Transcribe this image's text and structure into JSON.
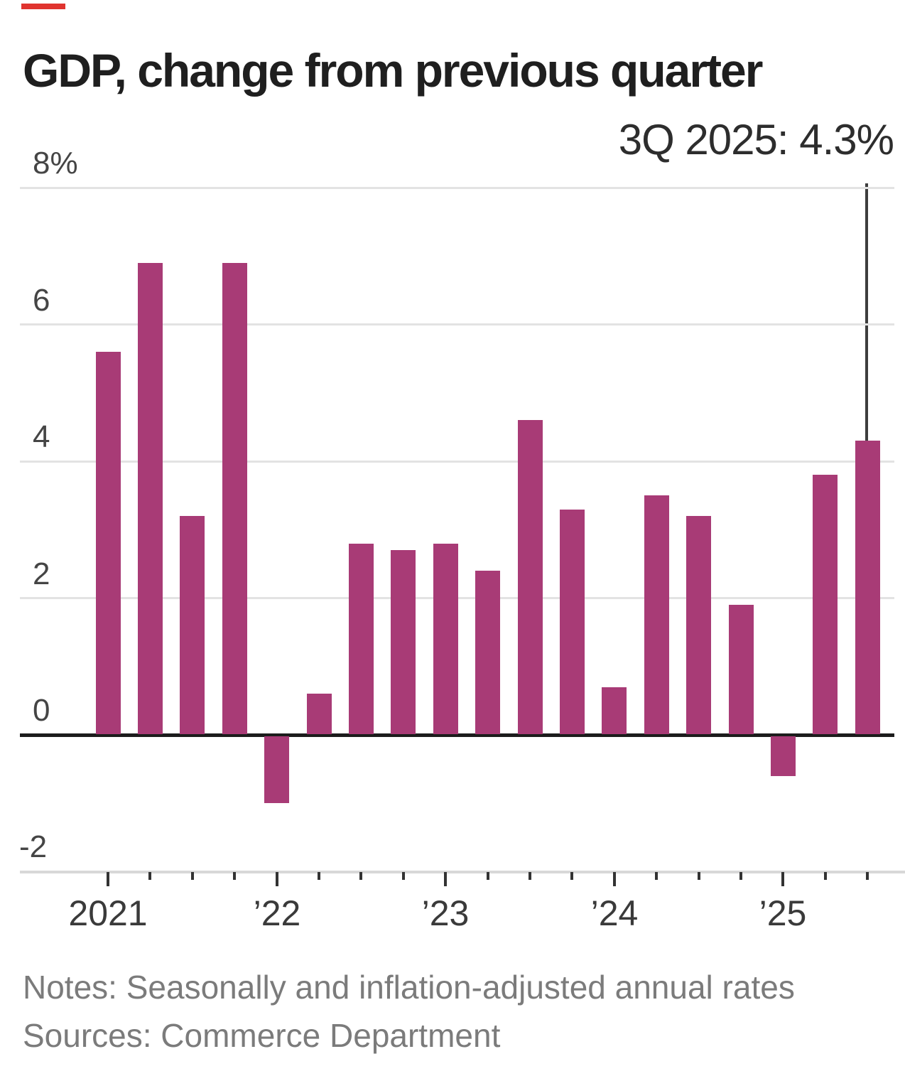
{
  "brand": {
    "red_tick_color": "#e0342f"
  },
  "header": {
    "title": "GDP, change from previous quarter"
  },
  "annotation": {
    "label": "3Q 2025: 4.3%",
    "quarter": "3Q 2025",
    "value": 4.3
  },
  "chart_data": {
    "type": "bar",
    "title": "GDP, change from previous quarter",
    "unit": "percent, seasonally and inflation-adjusted annual rate",
    "bar_color": "#a83b76",
    "ylim": [
      -2,
      8
    ],
    "grid": "horizontal",
    "categories": [
      "1Q 2021",
      "2Q 2021",
      "3Q 2021",
      "4Q 2021",
      "1Q 2022",
      "2Q 2022",
      "3Q 2022",
      "4Q 2022",
      "1Q 2023",
      "2Q 2023",
      "3Q 2023",
      "4Q 2023",
      "1Q 2024",
      "2Q 2024",
      "3Q 2024",
      "4Q 2024",
      "1Q 2025",
      "2Q 2025",
      "3Q 2025"
    ],
    "values": [
      5.6,
      6.9,
      3.2,
      6.9,
      -1.0,
      0.6,
      2.8,
      2.7,
      2.8,
      2.4,
      4.6,
      3.3,
      0.7,
      3.5,
      3.2,
      1.9,
      -0.6,
      3.8,
      4.3
    ],
    "y_ticks": [
      {
        "label": "8%",
        "value": 8
      },
      {
        "label": "6",
        "value": 6
      },
      {
        "label": "4",
        "value": 4
      },
      {
        "label": "2",
        "value": 2
      },
      {
        "label": "0",
        "value": 0
      },
      {
        "label": "-2",
        "value": -2
      }
    ],
    "x_year_labels": [
      "2021",
      "’22",
      "’23",
      "’24",
      "’25"
    ],
    "annotation": "3Q 2025: 4.3%"
  },
  "footer": {
    "notes": "Notes: Seasonally and inflation-adjusted annual rates",
    "sources": "Sources: Commerce Department"
  }
}
